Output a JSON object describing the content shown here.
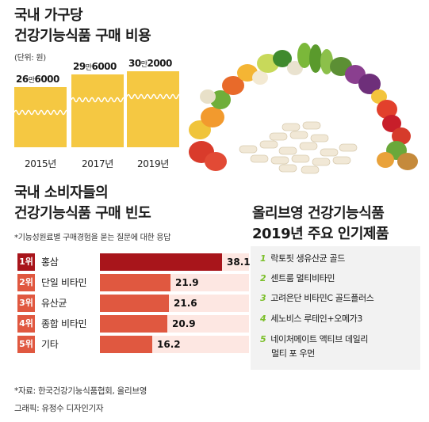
{
  "spending": {
    "title_line1": "국내 가구당",
    "title_line2": "건강기능식품 구매 비용",
    "unit": "(단위: 원)",
    "items": [
      {
        "year": "2015년",
        "label_big": "26",
        "label_unit": "만",
        "label_rest": "6000",
        "value": 266000
      },
      {
        "year": "2017년",
        "label_big": "29",
        "label_unit": "만",
        "label_rest": "6000",
        "value": 296000
      },
      {
        "year": "2019년",
        "label_big": "30",
        "label_unit": "만",
        "label_rest": "2000",
        "value": 302000
      }
    ]
  },
  "frequency": {
    "title_line1": "국내 소비자들의",
    "title_line2": "건강기능식품 구매 빈도",
    "note": "*기능성원료별 구매경험을 묻는 질문에 대한 응답",
    "ranks": [
      {
        "rank": "1위",
        "name": "홍삼",
        "value": 38.1,
        "label": "38.1"
      },
      {
        "rank": "2위",
        "name": "단일 비타민",
        "value": 21.9,
        "label": "21.9"
      },
      {
        "rank": "3위",
        "name": "유산균",
        "value": 21.6,
        "label": "21.6"
      },
      {
        "rank": "4위",
        "name": "종합 비타민",
        "value": 20.9,
        "label": "20.9"
      },
      {
        "rank": "5위",
        "name": "기타",
        "value": 16.2,
        "label": "16.2"
      }
    ]
  },
  "popular": {
    "title_line1": "올리브영 건강기능식품",
    "title_line2": "2019년 주요 인기제품",
    "items": [
      {
        "num": "1",
        "line1": "락토핏 생유산균 골드",
        "line2": ""
      },
      {
        "num": "2",
        "line1": "센트룸 멀티비타민",
        "line2": ""
      },
      {
        "num": "3",
        "line1": "고려은단 비타민C 골드플러스",
        "line2": ""
      },
      {
        "num": "4",
        "line1": "세노비스 루테인+오메가3",
        "line2": ""
      },
      {
        "num": "5",
        "line1": "네이처메이트 액티브 데일리",
        "line2": "멀티 포 우먼"
      }
    ]
  },
  "footer": {
    "source": "*자료: 한국건강기능식품협회, 올리브영",
    "credit": "그래픽: 유정수 디자인기자"
  },
  "colors": {
    "spend_card": "#f5c842",
    "bar_top": "#a8151b",
    "bar_other": "#e05840",
    "badge_top": "#a8151b",
    "badge_other": "#e05840",
    "bar_track": "#fde7e2",
    "popular_num": "#7bbf2a"
  },
  "chart_data": [
    {
      "type": "bar",
      "title": "국내 가구당 건강기능식품 구매 비용",
      "categories": [
        "2015년",
        "2017년",
        "2019년"
      ],
      "values": [
        266000,
        296000,
        302000
      ],
      "unit": "(단위: 원)"
    },
    {
      "type": "bar",
      "title": "국내 소비자들의 건강기능식품 구매 빈도",
      "categories": [
        "홍삼",
        "단일 비타민",
        "유산균",
        "종합 비타민",
        "기타"
      ],
      "values": [
        38.1,
        21.9,
        21.6,
        20.9,
        16.2
      ]
    }
  ]
}
